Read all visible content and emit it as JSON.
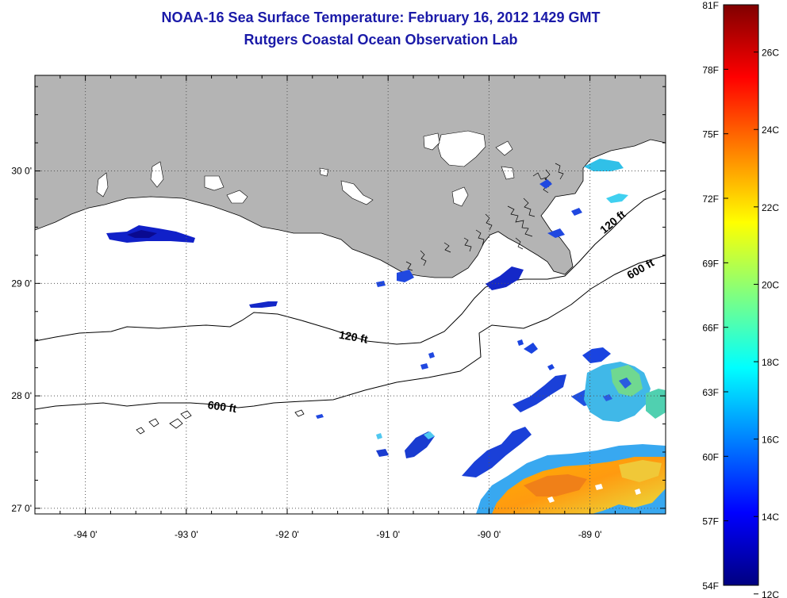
{
  "title": "NOAA-16 Sea Surface Temperature:  February 16, 2012 1429 GMT",
  "subtitle": "Rutgers Coastal Ocean Observation Lab",
  "map": {
    "lon_range": [
      -94.5,
      -88.25
    ],
    "lat_range": [
      26.95,
      30.85
    ],
    "x_tick_labels": [
      {
        "lon": -94,
        "text": "-94 0'"
      },
      {
        "lon": -93,
        "text": "-93 0'"
      },
      {
        "lon": -92,
        "text": "-92 0'"
      },
      {
        "lon": -91,
        "text": "-91 0'"
      },
      {
        "lon": -90,
        "text": "-90 0'"
      },
      {
        "lon": -89,
        "text": "-89 0'"
      }
    ],
    "y_tick_labels": [
      {
        "lat": 30,
        "text": "30 0'"
      },
      {
        "lat": 29,
        "text": "29 0'"
      },
      {
        "lat": 28,
        "text": "28 0'"
      },
      {
        "lat": 27,
        "text": "27 0'"
      }
    ],
    "contour_labels": [
      {
        "text": "120 ft",
        "lon": -91.35,
        "lat": 28.49,
        "rotate": 10
      },
      {
        "text": "600 ft",
        "lon": -92.65,
        "lat": 27.87,
        "rotate": 8
      },
      {
        "text": "120 ft",
        "lon": -88.75,
        "lat": 29.52,
        "rotate": -40
      },
      {
        "text": "600 ft",
        "lon": -88.48,
        "lat": 29.1,
        "rotate": -30
      }
    ],
    "land_color": "#b4b4b4"
  },
  "colorbar": {
    "left_labels": [
      "81F",
      "78F",
      "75F",
      "72F",
      "69F",
      "66F",
      "63F",
      "60F",
      "57F",
      "54F"
    ],
    "right_labels": [
      "26C",
      "24C",
      "22C",
      "20C",
      "18C",
      "16C",
      "14C",
      "12C"
    ],
    "colors": [
      "#000080",
      "#0000ff",
      "#0080ff",
      "#00ffff",
      "#80ff80",
      "#ffff00",
      "#ff8000",
      "#ff0000",
      "#800000"
    ]
  }
}
